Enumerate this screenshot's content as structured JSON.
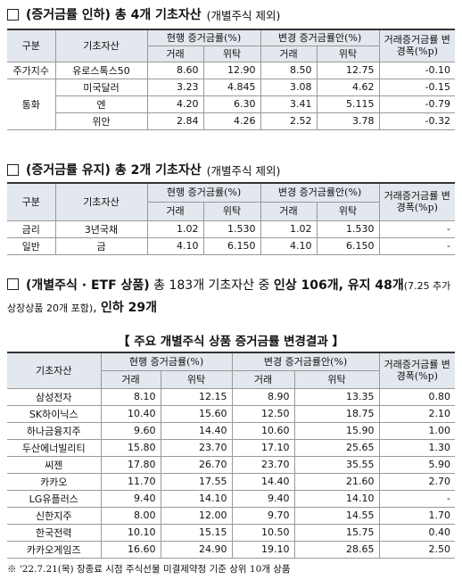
{
  "section1": {
    "title_bold": "(증거금률 인하) 총 4개 기초자산",
    "title_note": "(개별주식 제외)",
    "table": {
      "header": {
        "group": "구분",
        "asset": "기초자산",
        "current": "현행 증거금률(%)",
        "proposed": "변경 증거금률안(%)",
        "change": "거래증거금률 변경폭(%p)",
        "sub": [
          "거래",
          "위탁",
          "거래",
          "위탁"
        ]
      },
      "rows": [
        [
          "주가지수",
          "유로스톡스50",
          "8.60",
          "12.90",
          "8.50",
          "12.75",
          "-0.10"
        ],
        [
          "통화",
          "미국달러",
          "3.23",
          "4.845",
          "3.08",
          "4.62",
          "-0.15"
        ],
        [
          null,
          "엔",
          "4.20",
          "6.30",
          "3.41",
          "5.115",
          "-0.79"
        ],
        [
          null,
          "위안",
          "2.84",
          "4.26",
          "2.52",
          "3.78",
          "-0.32"
        ]
      ]
    }
  },
  "section2": {
    "title_bold": "(증거금률 유지) 총 2개 기초자산",
    "title_note": "(개별주식 제외)",
    "table": {
      "header": {
        "group": "구분",
        "asset": "기초자산",
        "current": "현행 증거금률(%)",
        "proposed": "변경 증거금률안(%)",
        "change": "거래증거금률 변경폭(%p)",
        "sub": [
          "거래",
          "위탁",
          "거래",
          "위탁"
        ]
      },
      "rows": [
        [
          "금리",
          "3년국채",
          "1.02",
          "1.530",
          "1.02",
          "1.530",
          "-"
        ],
        [
          "일반",
          "금",
          "4.10",
          "6.150",
          "4.10",
          "6.150",
          "-"
        ]
      ]
    }
  },
  "section3": {
    "segments": [
      {
        "text": "(개별주식 · ETF 상품)",
        "style": "bold"
      },
      {
        "text": " 총 183개 기초자산 중 ",
        "style": "normal"
      },
      {
        "text": "인상 106개, 유지 48개",
        "style": "bold"
      },
      {
        "text": "(7.25 추가상장상품 20개 포함)",
        "style": "small"
      },
      {
        "text": ", ",
        "style": "normal"
      },
      {
        "text": "인하 29개",
        "style": "bold"
      }
    ],
    "caption": "【 주요 개별주식 상품 증거금률 변경결과 】",
    "table": {
      "header": {
        "asset": "기초자산",
        "current": "현행 증거금률(%)",
        "proposed": "변경 증거금률안(%)",
        "change": "거래증거금률 변경폭(%p)",
        "sub": [
          "거래",
          "위탁",
          "거래",
          "위탁"
        ]
      },
      "rows": [
        [
          "삼성전자",
          "8.10",
          "12.15",
          "8.90",
          "13.35",
          "0.80"
        ],
        [
          "SK하이닉스",
          "10.40",
          "15.60",
          "12.50",
          "18.75",
          "2.10"
        ],
        [
          "하나금융지주",
          "9.60",
          "14.40",
          "10.60",
          "15.90",
          "1.00"
        ],
        [
          "두산에너빌리티",
          "15.80",
          "23.70",
          "17.10",
          "25.65",
          "1.30"
        ],
        [
          "씨젠",
          "17.80",
          "26.70",
          "23.70",
          "35.55",
          "5.90"
        ],
        [
          "카카오",
          "11.70",
          "17.55",
          "14.40",
          "21.60",
          "2.70"
        ],
        [
          "LG유플러스",
          "9.40",
          "14.10",
          "9.40",
          "14.10",
          "-"
        ],
        [
          "신한지주",
          "8.00",
          "12.00",
          "9.70",
          "14.55",
          "1.70"
        ],
        [
          "한국전력",
          "10.10",
          "15.15",
          "10.50",
          "15.75",
          "0.40"
        ],
        [
          "카카오게임즈",
          "16.60",
          "24.90",
          "19.10",
          "28.65",
          "2.50"
        ]
      ]
    },
    "footnote": "※ '22.7.21(목) 장종료 시점 주식선물 미결제약정 기준 상위 10개 상품"
  }
}
